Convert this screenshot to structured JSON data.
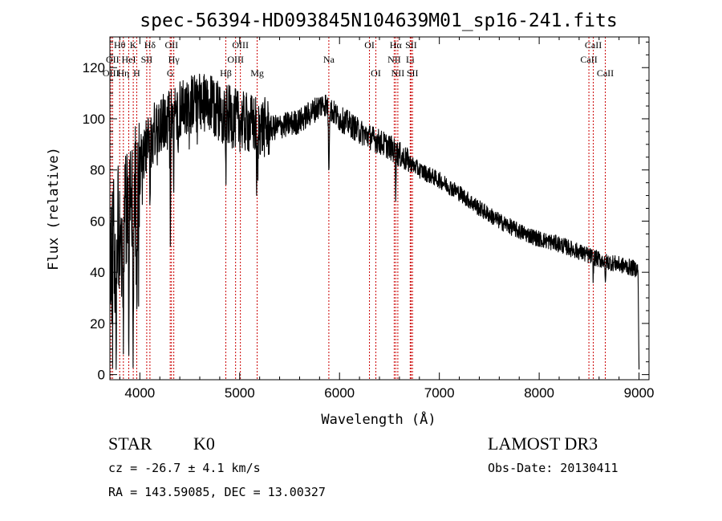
{
  "chart_data": {
    "type": "line",
    "title": "spec-56394-HD093845N104639M01_sp16-241.fits",
    "xlabel": "Wavelength (Å)",
    "ylabel": "Flux (relative)",
    "xlim": [
      3700,
      9100
    ],
    "ylim": [
      -2,
      132
    ],
    "x_ticks": [
      4000,
      5000,
      6000,
      7000,
      8000,
      9000
    ],
    "y_ticks": [
      0,
      20,
      40,
      60,
      80,
      100,
      120
    ],
    "colors": {
      "spectrum": "#000000",
      "line_markers": "#cc0000"
    },
    "continuum": [
      [
        3700,
        48
      ],
      [
        3800,
        60
      ],
      [
        3900,
        66
      ],
      [
        4000,
        82
      ],
      [
        4100,
        92
      ],
      [
        4200,
        98
      ],
      [
        4300,
        100
      ],
      [
        4400,
        104
      ],
      [
        4500,
        106
      ],
      [
        4600,
        106
      ],
      [
        4700,
        105
      ],
      [
        4800,
        103
      ],
      [
        4900,
        101
      ],
      [
        5000,
        99
      ],
      [
        5100,
        98
      ],
      [
        5200,
        97
      ],
      [
        5300,
        96
      ],
      [
        5400,
        97
      ],
      [
        5500,
        98
      ],
      [
        5600,
        99
      ],
      [
        5700,
        102
      ],
      [
        5800,
        105
      ],
      [
        5850,
        106
      ],
      [
        5900,
        104
      ],
      [
        6000,
        100
      ],
      [
        6100,
        98
      ],
      [
        6200,
        95
      ],
      [
        6300,
        93
      ],
      [
        6400,
        91
      ],
      [
        6500,
        89
      ],
      [
        6600,
        86
      ],
      [
        6700,
        83
      ],
      [
        6800,
        80
      ],
      [
        6900,
        78
      ],
      [
        7000,
        76
      ],
      [
        7200,
        71
      ],
      [
        7400,
        65
      ],
      [
        7600,
        60
      ],
      [
        7800,
        56
      ],
      [
        8000,
        53
      ],
      [
        8200,
        51
      ],
      [
        8400,
        48
      ],
      [
        8600,
        45
      ],
      [
        8800,
        43
      ],
      [
        9000,
        41
      ]
    ],
    "absorption_features": [
      {
        "wavelength": 3934,
        "depth": 70,
        "width": 6
      },
      {
        "wavelength": 3969,
        "depth": 55,
        "width": 6
      },
      {
        "wavelength": 3835,
        "depth": 40,
        "width": 5
      },
      {
        "wavelength": 3889,
        "depth": 45,
        "width": 5
      },
      {
        "wavelength": 3760,
        "depth": 30,
        "width": 8
      },
      {
        "wavelength": 4101,
        "depth": 25,
        "width": 5
      },
      {
        "wavelength": 4306,
        "depth": 55,
        "width": 4
      },
      {
        "wavelength": 4340,
        "depth": 25,
        "width": 4
      },
      {
        "wavelength": 4383,
        "depth": 20,
        "width": 3
      },
      {
        "wavelength": 4861,
        "depth": 25,
        "width": 4
      },
      {
        "wavelength": 5172,
        "depth": 25,
        "width": 5
      },
      {
        "wavelength": 5183,
        "depth": 20,
        "width": 3
      },
      {
        "wavelength": 5893,
        "depth": 22,
        "width": 6
      },
      {
        "wavelength": 6563,
        "depth": 15,
        "width": 4
      },
      {
        "wavelength": 8542,
        "depth": 8,
        "width": 5
      },
      {
        "wavelength": 8662,
        "depth": 9,
        "width": 5
      }
    ],
    "line_markers": [
      {
        "label": "Hθ",
        "wavelength": 3798,
        "row": 0
      },
      {
        "label": "OII",
        "wavelength": 3727,
        "row": 1
      },
      {
        "label": "OIII",
        "wavelength": 3710,
        "row": 2
      },
      {
        "label": "Hη",
        "wavelength": 3835,
        "row": 2
      },
      {
        "label": "K",
        "wavelength": 3934,
        "row": 0
      },
      {
        "label": "HeI",
        "wavelength": 3889,
        "row": 1
      },
      {
        "label": "SII",
        "wavelength": 4069,
        "row": 1
      },
      {
        "label": "H",
        "wavelength": 3969,
        "row": 2
      },
      {
        "label": "Hδ",
        "wavelength": 4101,
        "row": 0
      },
      {
        "label": "OII",
        "wavelength": 4317,
        "row": 0
      },
      {
        "label": "Hγ",
        "wavelength": 4340,
        "row": 1
      },
      {
        "label": "G",
        "wavelength": 4304,
        "row": 2
      },
      {
        "label": "OIII",
        "wavelength": 5007,
        "row": 0
      },
      {
        "label": "OIII",
        "wavelength": 4959,
        "row": 1
      },
      {
        "label": "Hβ",
        "wavelength": 4861,
        "row": 2
      },
      {
        "label": "Mg",
        "wavelength": 5175,
        "row": 2
      },
      {
        "label": "Na",
        "wavelength": 5893,
        "row": 1
      },
      {
        "label": "OI",
        "wavelength": 6300,
        "row": 0
      },
      {
        "label": "OI",
        "wavelength": 6364,
        "row": 2
      },
      {
        "label": "Hα",
        "wavelength": 6563,
        "row": 0
      },
      {
        "label": "SII",
        "wavelength": 6717,
        "row": 0
      },
      {
        "label": "NII",
        "wavelength": 6548,
        "row": 1
      },
      {
        "label": "Li",
        "wavelength": 6708,
        "row": 1
      },
      {
        "label": "NII",
        "wavelength": 6584,
        "row": 2
      },
      {
        "label": "SII",
        "wavelength": 6731,
        "row": 2
      },
      {
        "label": "CaII",
        "wavelength": 8542,
        "row": 0
      },
      {
        "label": "CaII",
        "wavelength": 8498,
        "row": 1
      },
      {
        "label": "CaII",
        "wavelength": 8662,
        "row": 2
      }
    ]
  },
  "info": {
    "object_class": "STAR",
    "subclass": "K0",
    "survey": "LAMOST DR3",
    "redshift_line": "cz = -26.7 ± 4.1 km/s",
    "obs_date_line": "Obs-Date: 20130411",
    "coords_line": "RA = 143.59085, DEC =  13.00327"
  }
}
